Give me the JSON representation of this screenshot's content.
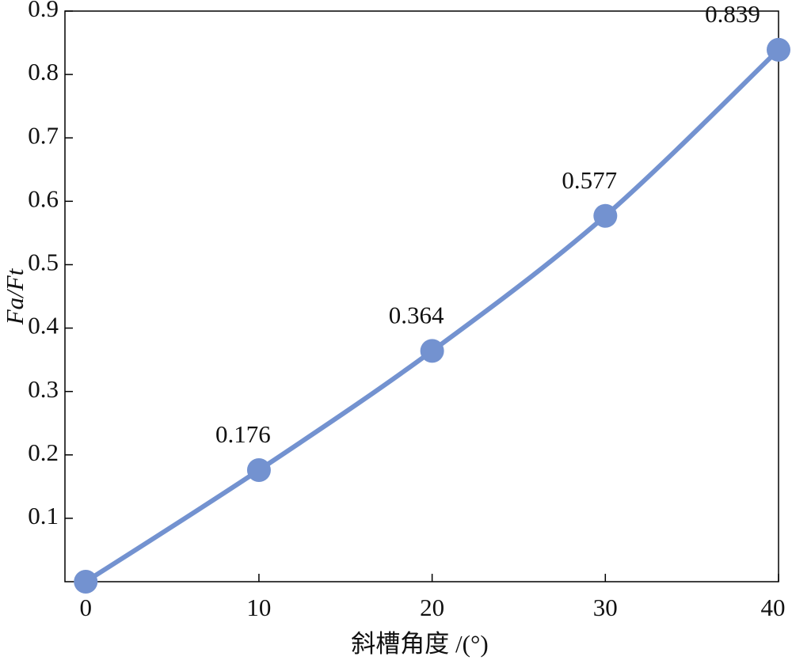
{
  "chart_data": {
    "type": "line",
    "x_label": "斜槽角度 /(°)",
    "y_label": "Fa/Ft",
    "x": [
      0,
      10,
      20,
      30,
      40
    ],
    "series": [
      {
        "color": "#7392d0",
        "values": [
          0,
          0.176,
          0.364,
          0.577,
          0.839
        ],
        "value_labels": [
          null,
          "0.176",
          "0.364",
          "0.577",
          "0.839"
        ]
      }
    ],
    "xlim": [
      -1.2,
      40
    ],
    "xticks": [
      0,
      10,
      20,
      30,
      40
    ],
    "ylim": [
      0,
      0.9
    ],
    "yticks": [
      0.1,
      0.2,
      0.3,
      0.4,
      0.5,
      0.6,
      0.7,
      0.8,
      0.9
    ],
    "grid": false
  }
}
